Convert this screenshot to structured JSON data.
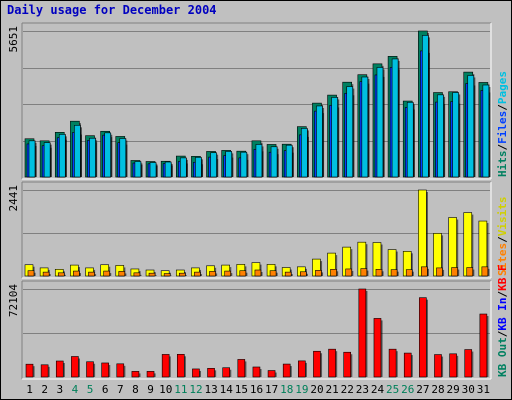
{
  "title": "Daily usage for December 2004",
  "chart_data": [
    {
      "type": "bar",
      "name": "pages-files-hits",
      "ymax_label": "5651",
      "ylim": [
        0,
        5651
      ],
      "legend": [
        {
          "label": "Pages",
          "color": "#00c0e0"
        },
        {
          "label": "Files",
          "color": "#0040ff"
        },
        {
          "label": "Hits",
          "color": "#008060"
        }
      ],
      "legend_separator": "/",
      "categories": [
        "1",
        "2",
        "3",
        "4",
        "5",
        "6",
        "7",
        "8",
        "9",
        "10",
        "11",
        "12",
        "13",
        "14",
        "15",
        "16",
        "17",
        "18",
        "19",
        "20",
        "21",
        "22",
        "23",
        "24",
        "25",
        "26",
        "27",
        "28",
        "29",
        "30",
        "31"
      ],
      "series": [
        {
          "name": "Hits",
          "color": "#008060",
          "values": [
            1480,
            1400,
            1730,
            2160,
            1600,
            1770,
            1570,
            640,
            600,
            610,
            810,
            800,
            990,
            1030,
            1000,
            1400,
            1260,
            1270,
            1950,
            2860,
            3170,
            3670,
            3960,
            4380,
            4670,
            2940,
            5651,
            3270,
            3300,
            4060,
            3660
          ]
        },
        {
          "name": "Files",
          "color": "#0040ff",
          "values": [
            1280,
            1210,
            1520,
            1720,
            1420,
            1620,
            1330,
            540,
            510,
            520,
            600,
            570,
            770,
            830,
            740,
            1070,
            960,
            1020,
            1630,
            2550,
            2770,
            3240,
            3690,
            3950,
            4240,
            2690,
            4880,
            2900,
            2920,
            3620,
            3350
          ]
        },
        {
          "name": "Pages",
          "color": "#00c0e0",
          "values": [
            1400,
            1330,
            1650,
            2000,
            1500,
            1710,
            1490,
            600,
            560,
            580,
            740,
            760,
            940,
            990,
            960,
            1260,
            1170,
            1230,
            1880,
            2750,
            3080,
            3500,
            3870,
            4240,
            4570,
            2890,
            5480,
            3180,
            3270,
            3930,
            3560
          ]
        }
      ]
    },
    {
      "type": "bar",
      "name": "visits-sites",
      "ymax_label": "2441",
      "ylim": [
        0,
        2441
      ],
      "legend": [
        {
          "label": "Visits",
          "color": "#d0d000"
        },
        {
          "label": "Sites",
          "color": "#ff8000"
        }
      ],
      "legend_separator": "/",
      "categories": [
        "1",
        "2",
        "3",
        "4",
        "5",
        "6",
        "7",
        "8",
        "9",
        "10",
        "11",
        "12",
        "13",
        "14",
        "15",
        "16",
        "17",
        "18",
        "19",
        "20",
        "21",
        "22",
        "23",
        "24",
        "25",
        "26",
        "27",
        "28",
        "29",
        "30",
        "31"
      ],
      "series": [
        {
          "name": "Visits",
          "color": "#ffff00",
          "values": [
            320,
            230,
            190,
            310,
            230,
            320,
            300,
            200,
            170,
            150,
            170,
            230,
            290,
            310,
            330,
            380,
            330,
            240,
            260,
            480,
            650,
            820,
            960,
            950,
            750,
            700,
            2441,
            1210,
            1660,
            1800,
            1560
          ]
        },
        {
          "name": "Sites",
          "color": "#ff8000",
          "values": [
            150,
            110,
            90,
            140,
            110,
            140,
            130,
            90,
            80,
            70,
            80,
            110,
            130,
            140,
            150,
            170,
            150,
            110,
            120,
            160,
            190,
            200,
            210,
            190,
            180,
            180,
            260,
            230,
            240,
            240,
            260
          ]
        }
      ]
    },
    {
      "type": "bar",
      "name": "kbytes",
      "ymax_label": "72104",
      "ylim": [
        0,
        72104
      ],
      "legend": [
        {
          "label": "KB F",
          "color": "#ff0000"
        },
        {
          "label": "KB In",
          "color": "#0000ff"
        },
        {
          "label": "KB Out",
          "color": "#008060"
        }
      ],
      "legend_separator": "/",
      "categories": [
        "1",
        "2",
        "3",
        "4",
        "5",
        "6",
        "7",
        "8",
        "9",
        "10",
        "11",
        "12",
        "13",
        "14",
        "15",
        "16",
        "17",
        "18",
        "19",
        "20",
        "21",
        "22",
        "23",
        "24",
        "25",
        "26",
        "27",
        "28",
        "29",
        "30",
        "31"
      ],
      "series": [
        {
          "name": "KB F",
          "color": "#ff0000",
          "values": [
            10500,
            10000,
            13100,
            16800,
            12500,
            11500,
            10800,
            4600,
            4600,
            18500,
            18600,
            6600,
            7100,
            7600,
            14400,
            8200,
            5300,
            10600,
            13200,
            21100,
            22800,
            20300,
            72104,
            48000,
            22800,
            19600,
            65000,
            18400,
            19000,
            22500,
            51600
          ]
        }
      ]
    }
  ],
  "weekend_days": [
    "4",
    "5",
    "11",
    "12",
    "18",
    "19",
    "25",
    "26"
  ]
}
